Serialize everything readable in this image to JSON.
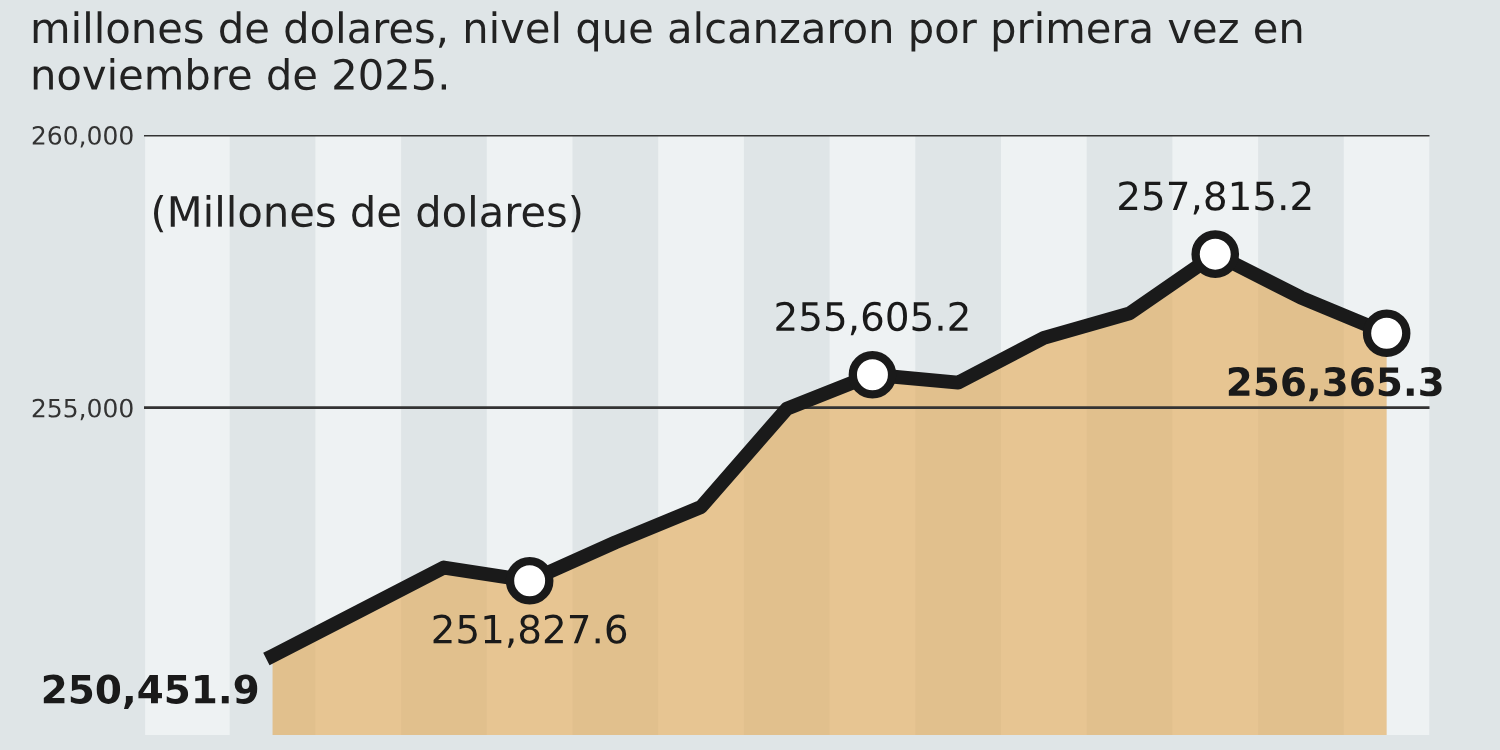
{
  "chart_data": {
    "type": "area",
    "title": "millones de dolares, nivel que alcanzaron por primera vez en noviembre de 2025.",
    "annotations": [
      "(Millones de dolares)"
    ],
    "categories": [
      null,
      null,
      null,
      null,
      null,
      null,
      null,
      null,
      null,
      null,
      null,
      null,
      null,
      null
    ],
    "series": [
      {
        "color": "#e3a652",
        "values": [
          250451.9,
          251260,
          252070,
          251827.6,
          252530,
          253180,
          254980,
          255605.2,
          255460,
          256280,
          256730,
          257815.2,
          257020,
          256365.3
        ],
        "value_labels": [
          "250,451.9",
          null,
          null,
          "251,827.6",
          null,
          null,
          null,
          "255,605.2",
          null,
          null,
          null,
          "257,815.2",
          null,
          "256,365.3"
        ]
      },
      {
        "type": "scatter",
        "color": "#ffffff",
        "values": [
          null,
          null,
          null,
          251827.6,
          null,
          null,
          null,
          255605.2,
          null,
          null,
          null,
          257815.2,
          null,
          256365.3
        ]
      }
    ],
    "ylim": [
      249000,
      260000
    ],
    "yticks": [
      {
        "value": 255000,
        "label": "255,000"
      },
      {
        "value": 260000,
        "label": "260,000"
      }
    ],
    "grid": "y",
    "tick_labels": "y",
    "line_style": "solid"
  }
}
